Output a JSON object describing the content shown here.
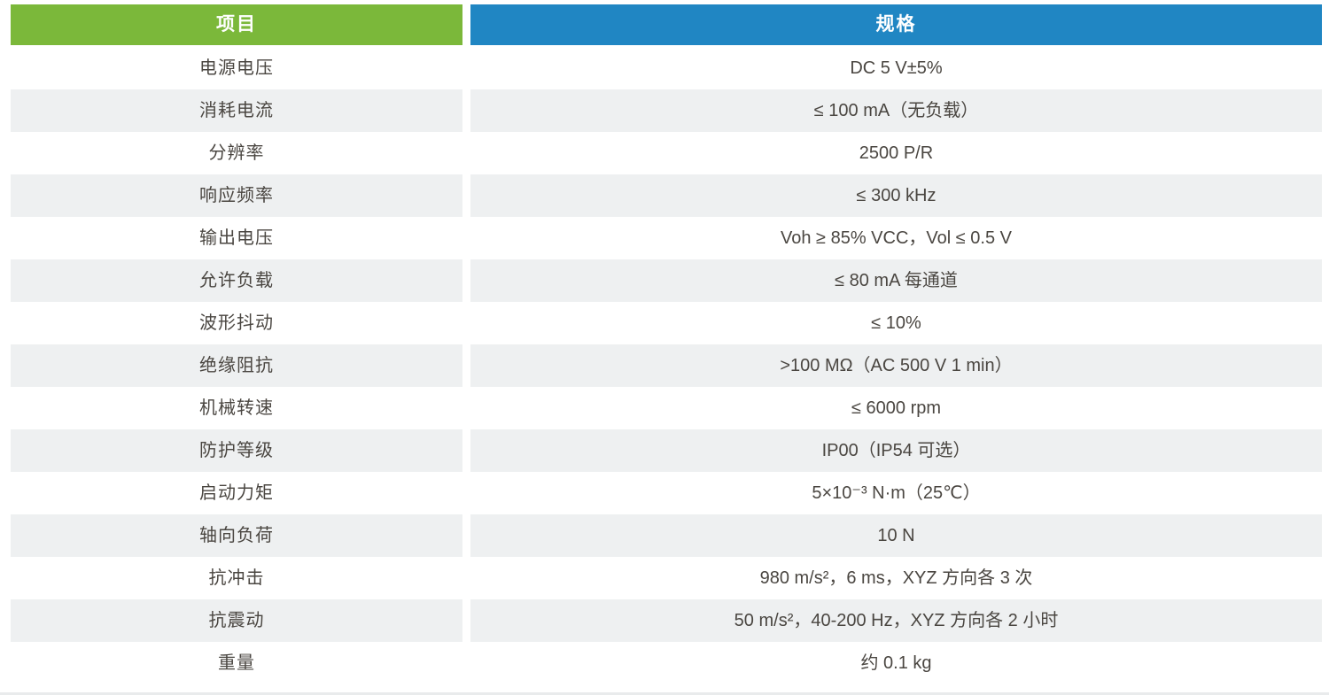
{
  "table": {
    "headers": {
      "item": "项目",
      "spec": "规格"
    },
    "colors": {
      "item_header_bg": "#7bb83a",
      "spec_header_bg": "#2086c3",
      "row_alt_bg": "#eef0f1",
      "header_text": "#ffffff",
      "text": "#4a4641"
    },
    "rows": [
      {
        "item": "电源电压",
        "spec": "DC 5 V±5%"
      },
      {
        "item": "消耗电流",
        "spec": "≤ 100 mA（无负载）"
      },
      {
        "item": "分辨率",
        "spec": "2500 P/R"
      },
      {
        "item": "响应频率",
        "spec": "≤ 300 kHz"
      },
      {
        "item": "输出电压",
        "spec": "Voh ≥ 85% VCC，Vol ≤ 0.5 V"
      },
      {
        "item": "允许负载",
        "spec": "≤ 80 mA 每通道"
      },
      {
        "item": "波形抖动",
        "spec": "≤ 10%"
      },
      {
        "item": "绝缘阻抗",
        "spec": ">100 MΩ（AC 500 V 1 min）"
      },
      {
        "item": "机械转速",
        "spec": "≤ 6000 rpm"
      },
      {
        "item": "防护等级",
        "spec": "IP00（IP54 可选）"
      },
      {
        "item": "启动力矩",
        "spec": "5×10⁻³ N·m（25℃）"
      },
      {
        "item": "轴向负荷",
        "spec": "10 N"
      },
      {
        "item": "抗冲击",
        "spec": "980 m/s²，6 ms，XYZ 方向各 3 次"
      },
      {
        "item": "抗震动",
        "spec": "50 m/s²，40-200 Hz，XYZ 方向各 2 小时"
      },
      {
        "item": "重量",
        "spec": "约 0.1 kg"
      }
    ]
  }
}
